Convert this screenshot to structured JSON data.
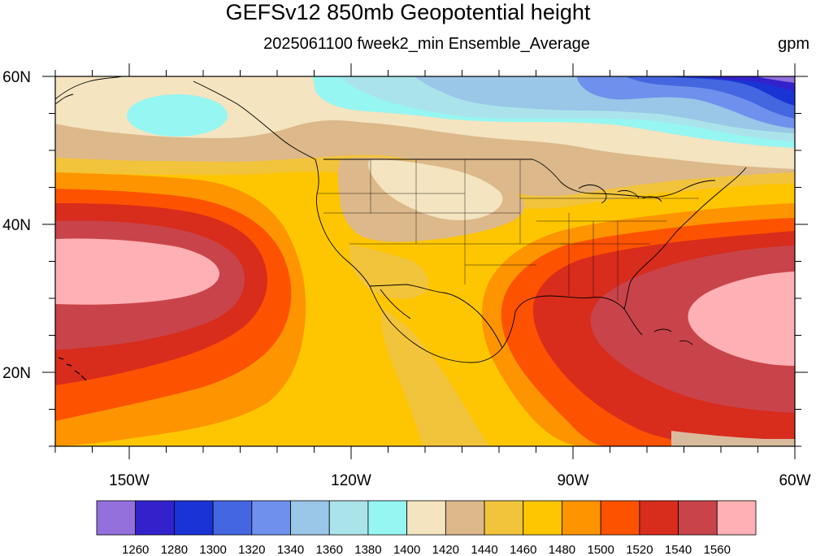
{
  "title": "GEFSv12 850mb Geopotential height",
  "subtitle": "2025061100 fweek2_min Ensemble_Average",
  "units": "gpm",
  "map": {
    "lon_range": [
      -160,
      -60
    ],
    "lat_range": [
      10,
      60
    ],
    "lon_ticks": [
      {
        "lon": -150,
        "label": "150W"
      },
      {
        "lon": -120,
        "label": "120W"
      },
      {
        "lon": -90,
        "label": "90W"
      },
      {
        "lon": -60,
        "label": "60W"
      }
    ],
    "lat_ticks": [
      {
        "lat": 60,
        "label": "60N"
      },
      {
        "lat": 40,
        "label": "40N"
      },
      {
        "lat": 20,
        "label": "20N"
      }
    ]
  },
  "colorbar": {
    "levels": [
      "1260",
      "1280",
      "1300",
      "1320",
      "1340",
      "1360",
      "1380",
      "1400",
      "1420",
      "1440",
      "1460",
      "1480",
      "1500",
      "1520",
      "1540",
      "1560"
    ],
    "colors": [
      "#9370db",
      "#3322cc",
      "#1a33d4",
      "#4466e0",
      "#6f90ec",
      "#9ac6e8",
      "#aae4ea",
      "#96f6f2",
      "#f4e4c0",
      "#dcb88a",
      "#f2c43c",
      "#fec600",
      "#fd9400",
      "#fd5200",
      "#d82c1c",
      "#c8444a",
      "#ffb0b4"
    ]
  }
}
